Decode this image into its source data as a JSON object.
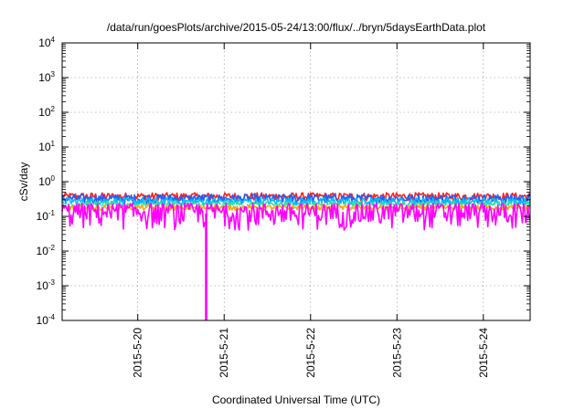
{
  "chart_data": {
    "type": "line",
    "title": "/data/run/goesPlots/archive/2015-05-24/13:00/flux/../bryn/5daysEarthData.plot",
    "xlabel": "Coordinated Universal Time (UTC)",
    "ylabel": "cSv/day",
    "yscale": "log",
    "ylim": [
      0.0001,
      10000
    ],
    "xlim": [
      "2015-05-19 03:00",
      "2015-05-24 13:00"
    ],
    "grid": true,
    "ytick_base": "10",
    "yticks": [
      {
        "value": 0.0001,
        "exp": "-4"
      },
      {
        "value": 0.001,
        "exp": "-3"
      },
      {
        "value": 0.01,
        "exp": "-2"
      },
      {
        "value": 0.1,
        "exp": "-1"
      },
      {
        "value": 1,
        "exp": "0"
      },
      {
        "value": 10,
        "exp": "1"
      },
      {
        "value": 100,
        "exp": "2"
      },
      {
        "value": 1000,
        "exp": "3"
      },
      {
        "value": 10000,
        "exp": "4"
      }
    ],
    "xticks": [
      {
        "value": "2015-05-20 00:00",
        "label": "2015-5-20"
      },
      {
        "value": "2015-05-21 00:00",
        "label": "2015-5-21"
      },
      {
        "value": "2015-05-22 00:00",
        "label": "2015-5-22"
      },
      {
        "value": "2015-05-23 00:00",
        "label": "2015-5-23"
      },
      {
        "value": "2015-05-24 00:00",
        "label": "2015-5-24"
      }
    ],
    "series": [
      {
        "color": "#ff2020",
        "level": 0.38,
        "spread": 0.1
      },
      {
        "color": "#2060ff",
        "level": 0.33,
        "spread": 0.1
      },
      {
        "color": "#00bfff",
        "level": 0.27,
        "spread": 0.07
      },
      {
        "color": "#30e0a0",
        "level": 0.22,
        "spread": 0.05
      },
      {
        "color": "#ffffff",
        "level": 0.195,
        "spread": 0.02
      },
      {
        "color": "#ffa500",
        "level": 0.18,
        "spread": 0.03
      },
      {
        "color": "#ff00ff",
        "level": 0.14,
        "spread": 0.1
      }
    ],
    "events": [
      {
        "x": "2015-05-20 19:00",
        "y": 0.0001,
        "series_color": "#ff00ff"
      }
    ]
  }
}
